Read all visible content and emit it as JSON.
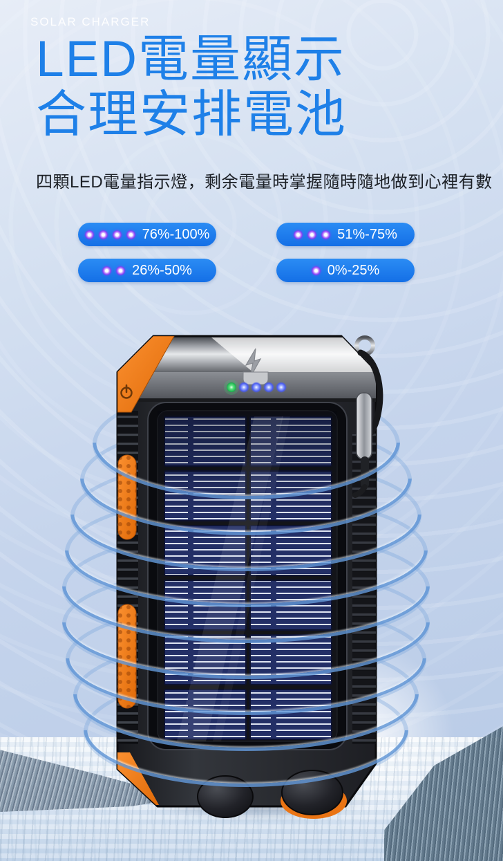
{
  "poster": {
    "brand": "SOLAR CHARGER",
    "title_line1": "LED電量顯示",
    "title_line2": "合理安排電池",
    "subtitle": "四顆LED電量指示燈，剩余電量時掌握隨時隨地做到心裡有數"
  },
  "battery_levels": [
    {
      "dots": 4,
      "label": "76%-100%"
    },
    {
      "dots": 3,
      "label": "51%-75%"
    },
    {
      "dots": 2,
      "label": "26%-50%"
    },
    {
      "dots": 1,
      "label": "0%-25%"
    }
  ],
  "product": {
    "indicator_leds": {
      "green": 1,
      "blue": 4
    },
    "visible_features": [
      "power-icon",
      "arrow-up-icon",
      "carabiner-clip",
      "solar-panel",
      "led-indicators",
      "flashlight-bumps",
      "orange-grip-pads"
    ]
  },
  "colors": {
    "title_blue": "#1e80e8",
    "pill_blue": "#1b7ff0",
    "led_purple": "#8a3cf5",
    "accent_orange": "#f0761e",
    "panel_navy": "#232f66",
    "background_blue": "#c5d4ec"
  }
}
